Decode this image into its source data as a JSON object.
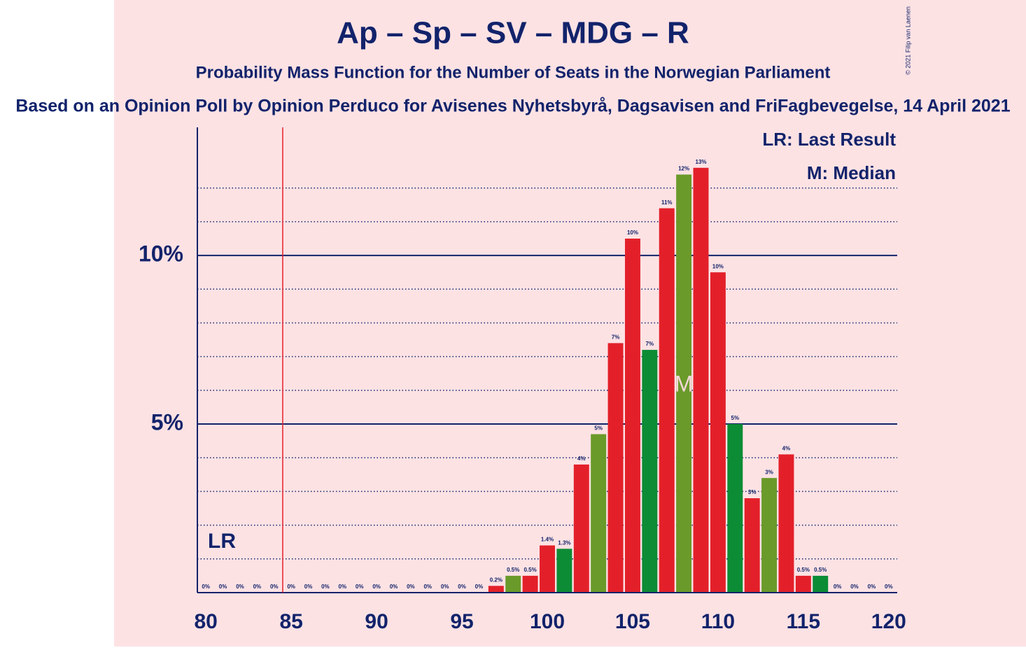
{
  "chart_data": {
    "type": "bar",
    "title": "Ap – Sp – SV – MDG – R",
    "subtitle": "Probability Mass Function for the Number of Seats in the Norwegian Parliament",
    "source": "Based on an Opinion Poll by Opinion Perduco for Avisenes Nyhetsbyrå, Dagsavisen and FriFagbevegelse, 14 April 2021",
    "copyright": "© 2021 Filip van Laenen",
    "x": [
      80,
      81,
      82,
      83,
      84,
      85,
      86,
      87,
      88,
      89,
      90,
      91,
      92,
      93,
      94,
      95,
      96,
      97,
      98,
      99,
      100,
      101,
      102,
      103,
      104,
      105,
      106,
      107,
      108,
      109,
      110,
      111,
      112,
      113,
      114,
      115,
      116,
      117,
      118,
      119,
      120
    ],
    "values": [
      0,
      0,
      0,
      0,
      0,
      0,
      0,
      0,
      0,
      0,
      0,
      0,
      0,
      0,
      0,
      0,
      0,
      0.2,
      0.5,
      0.5,
      1.4,
      1.3,
      3.8,
      4.7,
      7.4,
      10.5,
      7.2,
      11.4,
      12.4,
      12.6,
      9.5,
      5.0,
      2.8,
      3.4,
      4.1,
      0.5,
      0.5,
      0,
      0,
      0,
      0
    ],
    "value_labels": [
      "0%",
      "0%",
      "0%",
      "0%",
      "0%",
      "0%",
      "0%",
      "0%",
      "0%",
      "0%",
      "0%",
      "0%",
      "0%",
      "0%",
      "0%",
      "0%",
      "0%",
      "0.2%",
      "0.5%",
      "0.5%",
      "1.4%",
      "1.3%",
      "4%",
      "5%",
      "7%",
      "10%",
      "7%",
      "11%",
      "12%",
      "13%",
      "10%",
      "5%",
      "3%",
      "3%",
      "4%",
      "0.5%",
      "0.5%",
      "0%",
      "0%",
      "0%",
      "0%"
    ],
    "colors": [
      "#e3202a",
      "#0c8c35",
      "#e3202a",
      "#6a9a2a",
      "#e3202a",
      "#e3202a",
      "#0c8c35",
      "#e3202a",
      "#6a9a2a",
      "#e3202a",
      "#e3202a",
      "#0c8c35",
      "#e3202a",
      "#6a9a2a",
      "#e3202a",
      "#e3202a",
      "#0c8c35",
      "#e3202a",
      "#6a9a2a",
      "#e3202a",
      "#e3202a",
      "#0c8c35",
      "#e3202a",
      "#6a9a2a",
      "#e3202a",
      "#e3202a",
      "#0c8c35",
      "#e3202a",
      "#6a9a2a",
      "#e3202a",
      "#e3202a",
      "#0c8c35",
      "#e3202a",
      "#6a9a2a",
      "#e3202a",
      "#e3202a",
      "#0c8c35",
      "#e3202a",
      "#6a9a2a",
      "#e3202a",
      "#e3202a"
    ],
    "xlim": [
      79.5,
      120.5
    ],
    "xticks": [
      80,
      85,
      90,
      95,
      100,
      105,
      110,
      115,
      120
    ],
    "ylim": [
      0,
      13.8
    ],
    "yticks": [
      {
        "value": 5,
        "label": "5%"
      },
      {
        "value": 10,
        "label": "10%"
      }
    ],
    "minor_yticks": [
      1,
      2,
      3,
      4,
      6,
      7,
      8,
      9,
      11,
      12
    ],
    "last_result": 84.5,
    "last_result_label": "LR",
    "median": 108,
    "median_label": "M",
    "legend": [
      "LR: Last Result",
      "M: Median"
    ]
  }
}
